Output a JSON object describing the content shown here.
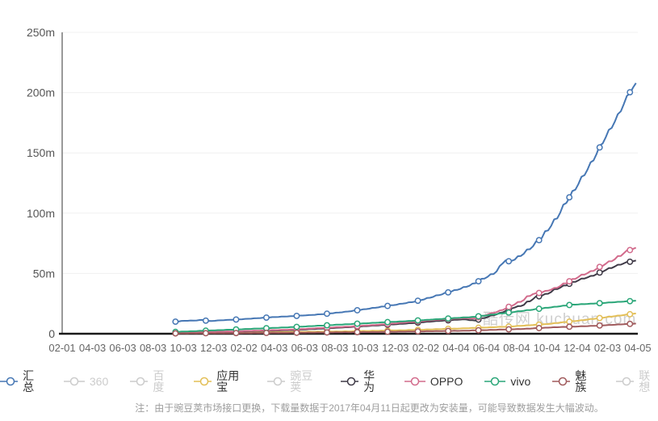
{
  "watermark": {
    "text": "酷传网 kuchuan.com",
    "color": "#c4c4c4"
  },
  "footnote": "注：由于豌豆荚市场接口更换，下载量数据于2017年04月11日起更改为安装量，可能导致数据发生大幅波动。",
  "colors": {
    "axis_x": "#1a1a1a",
    "axis_y": "#999999",
    "grid": "#f0f0f0",
    "tick_label": "#666666",
    "legend_active_text": "#333333",
    "legend_inactive": "#cccccc"
  },
  "legend": {
    "items": [
      {
        "label": "汇总",
        "color": "#4677b4",
        "active": true
      },
      {
        "label": "360",
        "color": "#cccccc",
        "active": false
      },
      {
        "label": "百度",
        "color": "#cccccc",
        "active": false
      },
      {
        "label": "应用宝",
        "color": "#e3bf57",
        "active": true
      },
      {
        "label": "豌豆荚",
        "color": "#cccccc",
        "active": false
      },
      {
        "label": "华为",
        "color": "#3f3a47",
        "active": true
      },
      {
        "label": "OPPO",
        "color": "#d26b8c",
        "active": true
      },
      {
        "label": "vivo",
        "color": "#2aa678",
        "active": true
      },
      {
        "label": "魅族",
        "color": "#a05a5c",
        "active": true
      },
      {
        "label": "联想",
        "color": "#cccccc",
        "active": false
      }
    ]
  },
  "chart_data": {
    "type": "line",
    "title": "",
    "xlabel": "",
    "ylabel": "",
    "unit": "m = millions",
    "ylim": [
      0,
      250
    ],
    "grid": true,
    "legend_position": "bottom",
    "y_tick_labels": [
      "0",
      "50m",
      "100m",
      "150m",
      "200m",
      "250m"
    ],
    "y_tick_values": [
      0,
      50,
      100,
      150,
      200,
      250
    ],
    "x_ticks": [
      "02-01",
      "04-03",
      "06-03",
      "08-03",
      "10-03",
      "12-03",
      "02-02",
      "04-03",
      "06-03",
      "08-03",
      "10-03",
      "12-03",
      "02-02",
      "04-04",
      "06-04",
      "08-04",
      "10-04",
      "12-04",
      "02-03",
      "04-05"
    ],
    "marker_step": 1.0,
    "series": [
      {
        "name": "汇总",
        "color": "#4677b4",
        "active": true,
        "points": [
          [
            3.74,
            10
          ],
          [
            4.0,
            10.7
          ],
          [
            4.4,
            11
          ],
          [
            4.66,
            11.5
          ],
          [
            4.8,
            10.4
          ],
          [
            5.3,
            11.2
          ],
          [
            5.9,
            12
          ],
          [
            6.5,
            13
          ],
          [
            7.0,
            13.8
          ],
          [
            7.6,
            14.6
          ],
          [
            8.2,
            15.5
          ],
          [
            8.7,
            16.5
          ],
          [
            9.3,
            18
          ],
          [
            9.9,
            20
          ],
          [
            10.45,
            22
          ],
          [
            11.0,
            24
          ],
          [
            11.6,
            26.5
          ],
          [
            12.0,
            29
          ],
          [
            12.35,
            31.5
          ],
          [
            12.7,
            34
          ],
          [
            13.1,
            37
          ],
          [
            13.5,
            40.5
          ],
          [
            13.7,
            43
          ],
          [
            14.0,
            47
          ],
          [
            14.25,
            50
          ],
          [
            14.45,
            55
          ],
          [
            14.6,
            62
          ],
          [
            14.75,
            60
          ],
          [
            14.9,
            61
          ],
          [
            15.2,
            66
          ],
          [
            15.5,
            72
          ],
          [
            15.8,
            79
          ],
          [
            16.05,
            87
          ],
          [
            16.35,
            97
          ],
          [
            16.6,
            108
          ],
          [
            16.9,
            119
          ],
          [
            17.2,
            131
          ],
          [
            17.5,
            143
          ],
          [
            17.75,
            155
          ],
          [
            18.05,
            168
          ],
          [
            18.35,
            181
          ],
          [
            18.6,
            194
          ],
          [
            18.8,
            203
          ],
          [
            19,
            210
          ]
        ]
      },
      {
        "name": "360",
        "color": "#cccccc",
        "active": false,
        "points": []
      },
      {
        "name": "百度",
        "color": "#cccccc",
        "active": false,
        "points": []
      },
      {
        "name": "应用宝",
        "color": "#e3bf57",
        "active": true,
        "points": [
          [
            3.74,
            0.5
          ],
          [
            6.65,
            1.2
          ],
          [
            9.5,
            2
          ],
          [
            11.4,
            3
          ],
          [
            13.3,
            4.5
          ],
          [
            14.8,
            6
          ],
          [
            16,
            8
          ],
          [
            17.1,
            11
          ],
          [
            18.05,
            14
          ],
          [
            19,
            17
          ]
        ]
      },
      {
        "name": "豌豆荚",
        "color": "#cccccc",
        "active": false,
        "points": []
      },
      {
        "name": "华为",
        "color": "#3f3a47",
        "active": true,
        "points": [
          [
            3.74,
            0.8
          ],
          [
            5.7,
            1.8
          ],
          [
            7.6,
            3
          ],
          [
            9.5,
            5.5
          ],
          [
            11.4,
            8.5
          ],
          [
            12.35,
            10.5
          ],
          [
            13.3,
            12
          ],
          [
            13.6,
            10.7
          ],
          [
            14.05,
            14
          ],
          [
            14.45,
            17
          ],
          [
            14.8,
            21
          ],
          [
            15.2,
            23.5
          ],
          [
            15.6,
            30
          ],
          [
            16.0,
            33
          ],
          [
            16.3,
            37
          ],
          [
            16.7,
            41
          ],
          [
            17.1,
            45
          ],
          [
            17.5,
            48
          ],
          [
            17.85,
            52
          ],
          [
            18.25,
            56
          ],
          [
            18.6,
            59
          ],
          [
            19,
            61
          ]
        ]
      },
      {
        "name": "OPPO",
        "color": "#d26b8c",
        "active": true,
        "points": [
          [
            3.74,
            1
          ],
          [
            5.7,
            2
          ],
          [
            7.6,
            3.5
          ],
          [
            9.5,
            6
          ],
          [
            10.45,
            7.5
          ],
          [
            11.4,
            9.5
          ],
          [
            12.35,
            11.5
          ],
          [
            13.3,
            13
          ],
          [
            13.6,
            12.5
          ],
          [
            14.05,
            16
          ],
          [
            14.45,
            19
          ],
          [
            14.8,
            23
          ],
          [
            15.2,
            27.5
          ],
          [
            15.5,
            33
          ],
          [
            15.8,
            34
          ],
          [
            16.3,
            38
          ],
          [
            16.7,
            43
          ],
          [
            17.1,
            48
          ],
          [
            17.5,
            52
          ],
          [
            17.85,
            57
          ],
          [
            18.25,
            62
          ],
          [
            18.6,
            68
          ],
          [
            19,
            72
          ]
        ]
      },
      {
        "name": "vivo",
        "color": "#2aa678",
        "active": true,
        "points": [
          [
            3.74,
            1.5
          ],
          [
            5.7,
            3.5
          ],
          [
            7.6,
            5.5
          ],
          [
            9.5,
            8
          ],
          [
            11.4,
            10.5
          ],
          [
            13.6,
            14
          ],
          [
            15.2,
            19
          ],
          [
            16.8,
            24
          ],
          [
            17.85,
            25.5
          ],
          [
            19,
            27.5
          ]
        ]
      },
      {
        "name": "魅族",
        "color": "#a05a5c",
        "active": true,
        "points": [
          [
            3.74,
            0.3
          ],
          [
            7.6,
            0.8
          ],
          [
            10.45,
            1.5
          ],
          [
            13.3,
            2.5
          ],
          [
            15.2,
            4
          ],
          [
            16.3,
            5.4
          ],
          [
            17.5,
            6.5
          ],
          [
            19,
            8.5
          ]
        ]
      },
      {
        "name": "联想",
        "color": "#cccccc",
        "active": false,
        "points": []
      }
    ]
  }
}
